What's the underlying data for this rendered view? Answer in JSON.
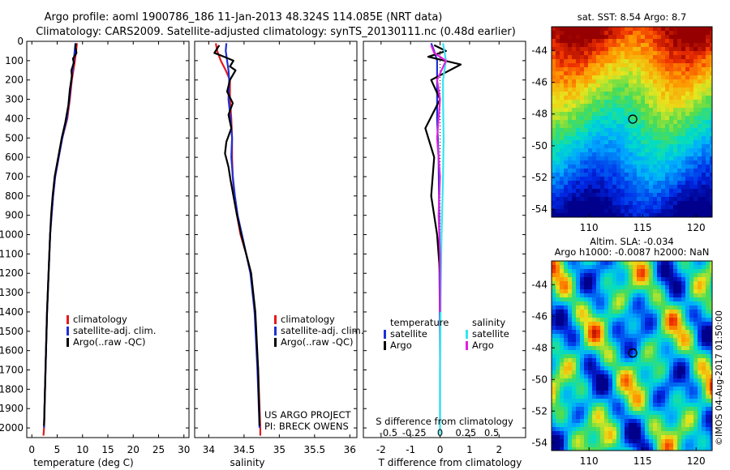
{
  "header": {
    "line1": "Argo profile: aoml 1900786_186 11-Jan-2013 48.324S 114.085E (NRT data)",
    "line2": "Climatology: CARS2009. Satellite-adjusted climatology: synTS_20130111.nc (0.48d earlier)"
  },
  "credit": "©IMOS 04-Aug-2017 01:50:00",
  "colors": {
    "climatology": "#e41a1c",
    "satellite": "#1e30d6",
    "argo": "#000000",
    "sal_satellite": "#33e5f0",
    "sal_argo": "#e020e0"
  },
  "chart_data": [
    {
      "id": "temperature",
      "type": "line",
      "xlabel": "temperature (deg C)",
      "ylabel": "",
      "xlim": [
        -1,
        31
      ],
      "ylim": [
        2050,
        0
      ],
      "inverted_y": true,
      "xticks": [
        0,
        5,
        10,
        15,
        20,
        25,
        30
      ],
      "yticks": [
        0,
        100,
        200,
        300,
        400,
        500,
        600,
        700,
        800,
        900,
        1000,
        1100,
        1200,
        1300,
        1400,
        1500,
        1600,
        1700,
        1800,
        1900,
        2000
      ],
      "legend": [
        "climatology",
        "satellite-adj. clim.",
        "Argo(..raw -QC)"
      ],
      "series": [
        {
          "name": "climatology",
          "color": "#e41a1c",
          "points": [
            [
              8.9,
              10
            ],
            [
              8.7,
              60
            ],
            [
              8.5,
              100
            ],
            [
              8.2,
              150
            ],
            [
              7.9,
              200
            ],
            [
              7.5,
              300
            ],
            [
              7.0,
              400
            ],
            [
              6.0,
              500
            ],
            [
              5.3,
              600
            ],
            [
              4.6,
              700
            ],
            [
              4.2,
              800
            ],
            [
              3.9,
              900
            ],
            [
              3.6,
              1000
            ],
            [
              3.3,
              1200
            ],
            [
              3.0,
              1400
            ],
            [
              2.7,
              1700
            ],
            [
              2.4,
              2000
            ],
            [
              2.3,
              2040
            ]
          ]
        },
        {
          "name": "satellite-adj. clim.",
          "color": "#1e30d6",
          "points": [
            [
              8.6,
              10
            ],
            [
              8.4,
              60
            ],
            [
              8.3,
              100
            ],
            [
              8.0,
              150
            ],
            [
              7.8,
              200
            ],
            [
              7.4,
              300
            ],
            [
              6.9,
              400
            ],
            [
              6.0,
              500
            ],
            [
              5.3,
              600
            ],
            [
              4.6,
              700
            ],
            [
              4.2,
              800
            ],
            [
              3.9,
              900
            ],
            [
              3.6,
              1000
            ],
            [
              3.3,
              1200
            ],
            [
              3.0,
              1400
            ],
            [
              2.7,
              1700
            ],
            [
              2.4,
              2000
            ]
          ]
        },
        {
          "name": "Argo(..raw -QC)",
          "color": "#000000",
          "points": [
            [
              8.7,
              10
            ],
            [
              8.6,
              30
            ],
            [
              8.8,
              60
            ],
            [
              8.1,
              90
            ],
            [
              8.3,
              110
            ],
            [
              7.8,
              150
            ],
            [
              7.9,
              180
            ],
            [
              7.5,
              250
            ],
            [
              7.2,
              330
            ],
            [
              6.6,
              420
            ],
            [
              5.9,
              500
            ],
            [
              5.2,
              600
            ],
            [
              4.5,
              700
            ],
            [
              4.1,
              800
            ],
            [
              3.8,
              900
            ],
            [
              3.6,
              1000
            ],
            [
              3.3,
              1200
            ],
            [
              3.0,
              1400
            ],
            [
              2.7,
              1700
            ],
            [
              2.4,
              1990
            ]
          ]
        }
      ]
    },
    {
      "id": "salinity",
      "type": "line",
      "xlabel": "salinity",
      "ylabel": "",
      "xlim": [
        33.8,
        36.1
      ],
      "ylim": [
        2050,
        0
      ],
      "inverted_y": true,
      "xticks": [
        34,
        34.5,
        35,
        35.5,
        36
      ],
      "xticklabels": [
        "34",
        "34.5",
        "35",
        "35.5",
        "36"
      ],
      "legend": [
        "climatology",
        "satellite-adj. clim.",
        "Argo(..raw -QC)"
      ],
      "annotation": [
        "US ARGO PROJECT",
        "PI: BRECK OWENS"
      ],
      "series": [
        {
          "name": "climatology",
          "color": "#e41a1c",
          "points": [
            [
              34.1,
              10
            ],
            [
              34.12,
              50
            ],
            [
              34.17,
              100
            ],
            [
              34.24,
              150
            ],
            [
              34.3,
              200
            ],
            [
              34.3,
              300
            ],
            [
              34.32,
              400
            ],
            [
              34.33,
              500
            ],
            [
              34.33,
              600
            ],
            [
              34.34,
              700
            ],
            [
              34.36,
              800
            ],
            [
              34.4,
              900
            ],
            [
              34.45,
              1000
            ],
            [
              34.53,
              1100
            ],
            [
              34.6,
              1200
            ],
            [
              34.65,
              1400
            ],
            [
              34.7,
              1700
            ],
            [
              34.73,
              2000
            ],
            [
              34.73,
              2040
            ]
          ]
        },
        {
          "name": "satellite-adj. clim.",
          "color": "#1e30d6",
          "points": [
            [
              34.25,
              10
            ],
            [
              34.24,
              50
            ],
            [
              34.26,
              100
            ],
            [
              34.28,
              150
            ],
            [
              34.29,
              200
            ],
            [
              34.28,
              300
            ],
            [
              34.31,
              400
            ],
            [
              34.33,
              500
            ],
            [
              34.32,
              600
            ],
            [
              34.34,
              700
            ],
            [
              34.37,
              800
            ],
            [
              34.41,
              900
            ],
            [
              34.47,
              1000
            ],
            [
              34.53,
              1100
            ],
            [
              34.59,
              1200
            ],
            [
              34.65,
              1400
            ],
            [
              34.69,
              1700
            ],
            [
              34.72,
              2000
            ]
          ]
        },
        {
          "name": "Argo(..raw -QC)",
          "color": "#000000",
          "points": [
            [
              34.15,
              20
            ],
            [
              34.08,
              60
            ],
            [
              34.22,
              80
            ],
            [
              34.35,
              100
            ],
            [
              34.3,
              130
            ],
            [
              34.38,
              150
            ],
            [
              34.3,
              200
            ],
            [
              34.26,
              260
            ],
            [
              34.34,
              320
            ],
            [
              34.28,
              380
            ],
            [
              34.32,
              450
            ],
            [
              34.25,
              520
            ],
            [
              34.23,
              580
            ],
            [
              34.28,
              650
            ],
            [
              34.31,
              720
            ],
            [
              34.35,
              800
            ],
            [
              34.4,
              900
            ],
            [
              34.46,
              1000
            ],
            [
              34.53,
              1100
            ],
            [
              34.6,
              1200
            ],
            [
              34.66,
              1400
            ],
            [
              34.7,
              1700
            ],
            [
              34.72,
              1990
            ]
          ]
        }
      ]
    },
    {
      "id": "differences",
      "type": "line",
      "xlabel": "T difference from climatology",
      "x2label": "S difference from climatology",
      "xlim": [
        -2.6,
        2.9
      ],
      "ylim": [
        2050,
        0
      ],
      "inverted_y": true,
      "xticks": [
        -2,
        -1,
        0,
        1,
        2
      ],
      "x2ticks": [
        -0.5,
        -0.25,
        0,
        0.25,
        0.5
      ],
      "x2ticklabels": [
        "-0.5",
        "-0.25",
        "0",
        "0.25",
        "0.5"
      ],
      "legend_temperature": {
        "title": "temperature",
        "items": [
          "satellite",
          "Argo"
        ]
      },
      "legend_salinity": {
        "title": "salinity",
        "items": [
          "satellite",
          "Argo"
        ]
      },
      "series": [
        {
          "name": "temperature satellite",
          "color": "#1e30d6",
          "points": [
            [
              -0.3,
              10
            ],
            [
              -0.2,
              50
            ],
            [
              -0.1,
              100
            ],
            [
              -0.1,
              200
            ],
            [
              -0.1,
              400
            ],
            [
              -0.05,
              600
            ],
            [
              -0.03,
              900
            ],
            [
              -0.02,
              1200
            ],
            [
              0,
              1500
            ],
            [
              0,
              1970
            ]
          ]
        },
        {
          "name": "temperature Argo",
          "color": "#000000",
          "points": [
            [
              -0.2,
              20
            ],
            [
              0.2,
              50
            ],
            [
              -0.4,
              80
            ],
            [
              0.7,
              120
            ],
            [
              -0.3,
              200
            ],
            [
              0.0,
              300
            ],
            [
              -0.5,
              450
            ],
            [
              -0.2,
              600
            ],
            [
              -0.3,
              800
            ],
            [
              -0.1,
              1000
            ],
            [
              0,
              1200
            ],
            [
              0,
              1400
            ]
          ]
        },
        {
          "name": "salinity satellite",
          "color": "#33e5f0",
          "points": [
            [
              0.1,
              10
            ],
            [
              0.2,
              100
            ],
            [
              0.1,
              200
            ],
            [
              0.1,
              300
            ],
            [
              0.12,
              500
            ],
            [
              0.1,
              700
            ],
            [
              0.05,
              1000
            ],
            [
              0.02,
              1300
            ],
            [
              0,
              1700
            ],
            [
              0,
              2040
            ]
          ]
        },
        {
          "name": "salinity Argo",
          "color": "#e020e0",
          "points": [
            [
              -0.3,
              20
            ],
            [
              -0.2,
              60
            ],
            [
              0.2,
              100
            ],
            [
              -0.1,
              200
            ],
            [
              0.0,
              300
            ],
            [
              -0.05,
              400
            ],
            [
              -0.1,
              500
            ],
            [
              0.0,
              700
            ],
            [
              -0.05,
              900
            ],
            [
              0,
              1100
            ],
            [
              0,
              1400
            ]
          ]
        }
      ]
    },
    {
      "id": "sst_map",
      "type": "heatmap",
      "title": "sat. SST: 8.54 Argo: 8.7",
      "xlim": [
        106.5,
        121.5
      ],
      "ylim": [
        -54.5,
        -42.5
      ],
      "xticks": [
        110,
        115,
        120
      ],
      "yticks": [
        -44,
        -46,
        -48,
        -50,
        -52,
        -54
      ],
      "marker": [
        114.085,
        -48.324
      ]
    },
    {
      "id": "sla_map",
      "type": "heatmap",
      "title_line1": "Altim. SLA: -0.034",
      "title_line2": "Argo h1000: -0.0087 h2000: NaN",
      "xlim": [
        106.5,
        121.5
      ],
      "ylim": [
        -54.5,
        -42.5
      ],
      "xticks": [
        110,
        115,
        120
      ],
      "yticks": [
        -44,
        -46,
        -48,
        -50,
        -52,
        -54
      ],
      "marker": [
        114.085,
        -48.324
      ]
    }
  ]
}
